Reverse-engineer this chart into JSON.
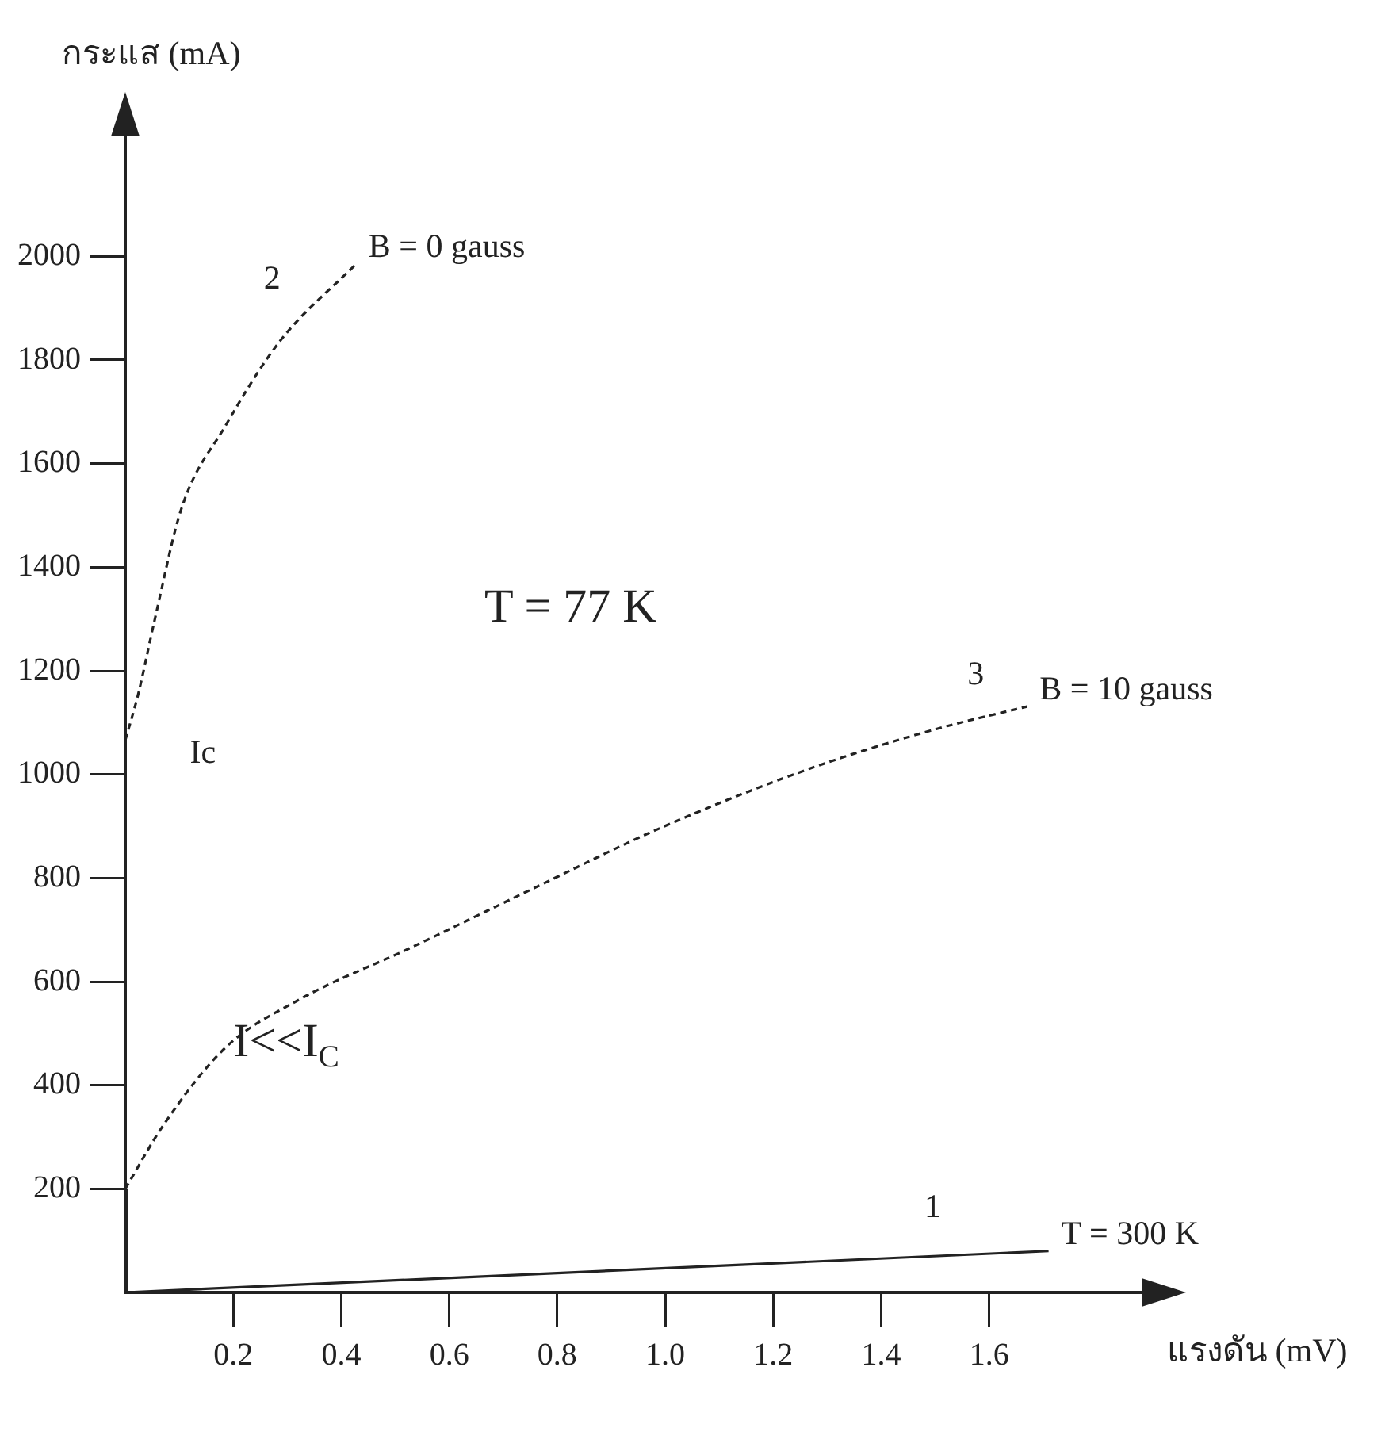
{
  "chart_data": {
    "type": "line",
    "xlabel": "แรงดัน (mV)",
    "ylabel": "กระแส (mA)",
    "xlim": [
      0,
      1.9
    ],
    "ylim": [
      0,
      2250
    ],
    "xticks": [
      0.2,
      0.4,
      0.6,
      0.8,
      {
        "value": 1,
        "label": "1.0"
      },
      1.2,
      1.4,
      1.6
    ],
    "yticks": [
      200,
      400,
      600,
      800,
      1000,
      1200,
      1400,
      1600,
      1800,
      2000
    ],
    "grid": false,
    "legend": false,
    "marker": "none",
    "series": [
      {
        "name": "B = 0 gauss",
        "color": "#222222",
        "line_style": "dashed",
        "x": [
          0,
          0.024,
          0.054,
          0.104,
          0.185,
          0.284,
          0.427
        ],
        "values": [
          1066,
          1155,
          1296,
          1513,
          1672,
          1833,
          1985
        ]
      },
      {
        "name": "B = 10 gauss",
        "color": "#222222",
        "line_style": "dashed",
        "x": [
          0,
          0.07,
          0.185,
          0.32,
          0.53,
          0.76,
          0.99,
          1.27,
          1.5,
          1.67
        ],
        "values": [
          200,
          322,
          472,
          564,
          666,
          782,
          896,
          1012,
          1087,
          1131
        ]
      },
      {
        "name": "T = 300 K",
        "color": "#222222",
        "line_style": "solid",
        "x": [
          0,
          1.71
        ],
        "values": [
          0,
          80
        ]
      },
      {
        "color": "#222222",
        "line_style": "solid",
        "x": [
          0,
          0
        ],
        "values": [
          0,
          200
        ]
      }
    ],
    "annotations": [
      "2",
      "3",
      "1",
      "T = 77 K",
      "Ic",
      {
        "text": "I<<I$_{C}$",
        "x": 0.2,
        "y": 480
      }
    ]
  }
}
